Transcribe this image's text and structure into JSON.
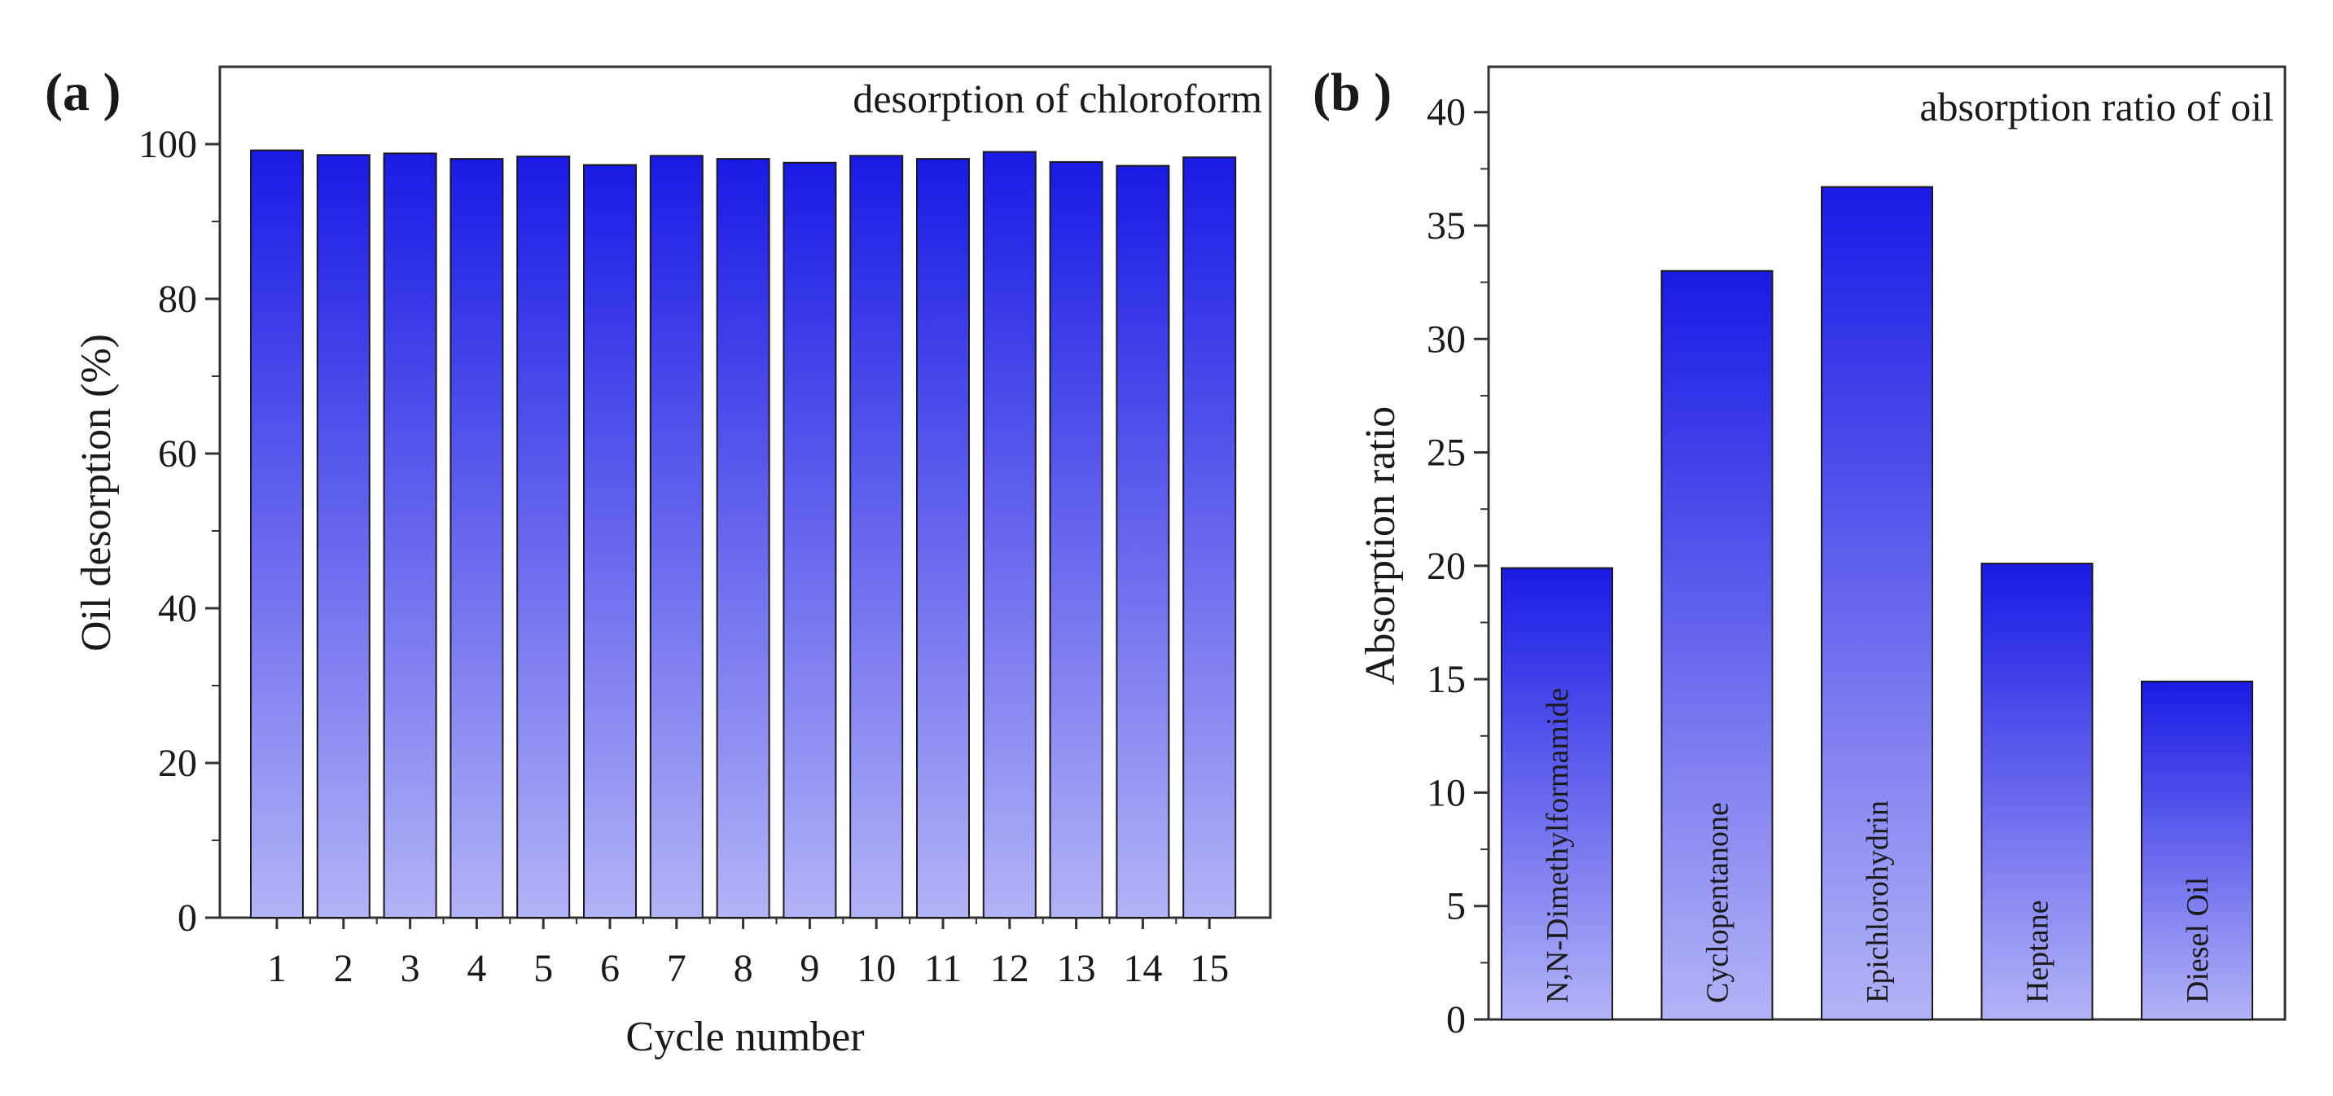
{
  "chart_data": [
    {
      "panel": "(a )",
      "type": "bar",
      "title": "desorption of chloroform",
      "xlabel": "Cycle number",
      "ylabel": "Oil desorption (%)",
      "categories": [
        "1",
        "2",
        "3",
        "4",
        "5",
        "6",
        "7",
        "8",
        "9",
        "10",
        "11",
        "12",
        "13",
        "14",
        "15"
      ],
      "values": [
        99.2,
        98.6,
        98.8,
        98.1,
        98.4,
        97.3,
        98.5,
        98.1,
        97.6,
        98.5,
        98.1,
        99.0,
        97.7,
        97.2,
        98.3
      ],
      "ylim": [
        0,
        110
      ],
      "yticks": [
        "0",
        "20",
        "40",
        "60",
        "80",
        "100"
      ],
      "grid": false,
      "bar_color_top": "#1a1ae6",
      "bar_color_bottom": "#b3b3f7"
    },
    {
      "panel": "(b )",
      "type": "bar",
      "title": "absorption ratio of oil",
      "xlabel": "",
      "ylabel": "Absorption ratio",
      "categories": [
        "N,N-Dimethylformamide",
        "Cyclopentanone",
        "Epichlorohydrin",
        "Heptane",
        "Diesel Oil"
      ],
      "values": [
        19.9,
        33.0,
        36.7,
        20.1,
        14.9
      ],
      "ylim": [
        0,
        42
      ],
      "yticks": [
        "0",
        "5",
        "10",
        "15",
        "20",
        "25",
        "30",
        "35",
        "40"
      ],
      "grid": false,
      "bar_color_top": "#1a1ae6",
      "bar_color_bottom": "#b3b3f7"
    }
  ]
}
